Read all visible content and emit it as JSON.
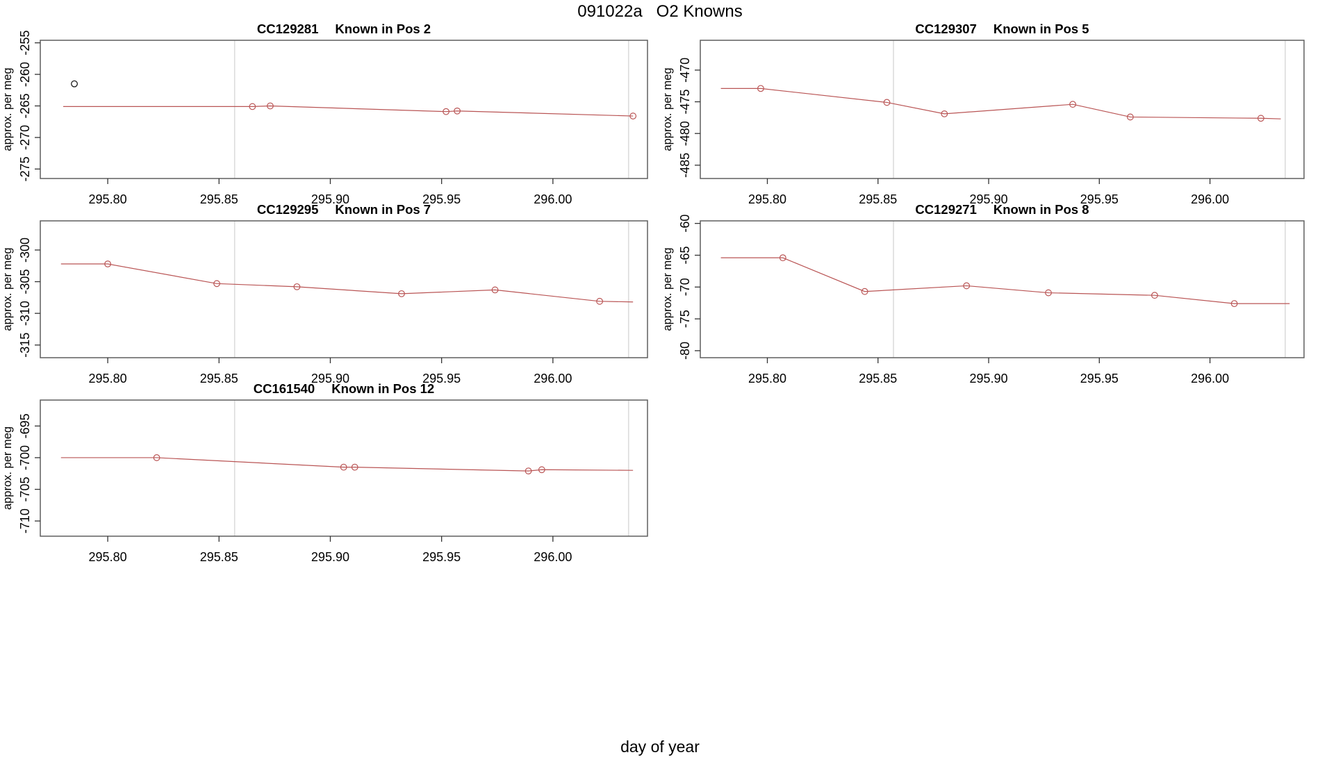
{
  "figure": {
    "title": "091022a   O2 Knowns",
    "outer_xlabel": "day of year"
  },
  "colors": {
    "series": "#b95454",
    "outlier_point": "#1a1a1a",
    "gridline": "#dcdcdc",
    "frame": "#5f5f5f",
    "tick": "#333333",
    "text": "#000000",
    "background": "#ffffff"
  },
  "chart_data": [
    {
      "type": "line",
      "sample_id": "CC129281",
      "position_label": "Known in Pos 2",
      "title": "CC129281   Known in Pos 2",
      "ylabel": "approx. per meg",
      "grid_col": 0,
      "grid_row": 0,
      "xlim": [
        295.7697,
        296.0425
      ],
      "ylim": [
        -276.5,
        -254.6
      ],
      "xticks": [
        295.8,
        295.85,
        295.9,
        295.95,
        296.0
      ],
      "yticks": [
        -255,
        -260,
        -265,
        -270,
        -275
      ],
      "vlines": [
        295.857,
        296.034
      ],
      "line": [
        [
          295.78,
          -265.1
        ],
        [
          295.865,
          -265.1
        ],
        [
          295.873,
          -265.0
        ],
        [
          295.952,
          -265.9
        ],
        [
          295.957,
          -265.8
        ],
        [
          296.036,
          -266.6
        ]
      ],
      "markers": [
        [
          295.865,
          -265.1
        ],
        [
          295.873,
          -265.0
        ],
        [
          295.952,
          -265.9
        ],
        [
          295.957,
          -265.8
        ],
        [
          296.036,
          -266.6
        ]
      ],
      "outlier_points": [
        [
          295.785,
          -261.5
        ]
      ]
    },
    {
      "type": "line",
      "sample_id": "CC129307",
      "position_label": "Known in Pos 5",
      "title": "CC129307   Known in Pos 5",
      "ylabel": "approx. per meg",
      "grid_col": 1,
      "grid_row": 0,
      "xlim": [
        295.7697,
        296.0425
      ],
      "ylim": [
        -487.1,
        -465.3
      ],
      "xticks": [
        295.8,
        295.85,
        295.9,
        295.95,
        296.0
      ],
      "yticks": [
        -470,
        -475,
        -480,
        -485
      ],
      "vlines": [
        295.857,
        296.034
      ],
      "line": [
        [
          295.779,
          -472.9
        ],
        [
          295.797,
          -472.9
        ],
        [
          295.854,
          -475.1
        ],
        [
          295.88,
          -476.9
        ],
        [
          295.938,
          -475.4
        ],
        [
          295.964,
          -477.4
        ],
        [
          296.023,
          -477.6
        ],
        [
          296.032,
          -477.7
        ]
      ],
      "markers": [
        [
          295.797,
          -472.9
        ],
        [
          295.854,
          -475.1
        ],
        [
          295.88,
          -476.9
        ],
        [
          295.938,
          -475.4
        ],
        [
          295.964,
          -477.4
        ],
        [
          296.023,
          -477.6
        ]
      ],
      "outlier_points": []
    },
    {
      "type": "line",
      "sample_id": "CC129295",
      "position_label": "Known in Pos 7",
      "title": "CC129295   Known in Pos 7",
      "ylabel": "approx. per meg",
      "grid_col": 0,
      "grid_row": 1,
      "xlim": [
        295.7697,
        296.0425
      ],
      "ylim": [
        -317.0,
        -295.4
      ],
      "xticks": [
        295.8,
        295.85,
        295.9,
        295.95,
        296.0
      ],
      "yticks": [
        -300,
        -305,
        -310,
        -315
      ],
      "vlines": [
        295.857,
        296.034
      ],
      "line": [
        [
          295.779,
          -302.2
        ],
        [
          295.8,
          -302.2
        ],
        [
          295.849,
          -305.3
        ],
        [
          295.885,
          -305.8
        ],
        [
          295.932,
          -306.9
        ],
        [
          295.974,
          -306.3
        ],
        [
          296.021,
          -308.1
        ],
        [
          296.036,
          -308.2
        ]
      ],
      "markers": [
        [
          295.8,
          -302.2
        ],
        [
          295.849,
          -305.3
        ],
        [
          295.885,
          -305.8
        ],
        [
          295.932,
          -306.9
        ],
        [
          295.974,
          -306.3
        ],
        [
          296.021,
          -308.1
        ]
      ],
      "outlier_points": []
    },
    {
      "type": "line",
      "sample_id": "CC129271",
      "position_label": "Known in Pos 8",
      "title": "CC129271   Known in Pos 8",
      "ylabel": "approx. per meg",
      "grid_col": 1,
      "grid_row": 1,
      "xlim": [
        295.7697,
        296.0425
      ],
      "ylim": [
        -81.1,
        -59.6
      ],
      "xticks": [
        295.8,
        295.85,
        295.9,
        295.95,
        296.0
      ],
      "yticks": [
        -60,
        -65,
        -70,
        -75,
        -80
      ],
      "vlines": [
        295.857,
        296.034
      ],
      "line": [
        [
          295.779,
          -65.4
        ],
        [
          295.807,
          -65.4
        ],
        [
          295.844,
          -70.7
        ],
        [
          295.89,
          -69.8
        ],
        [
          295.927,
          -70.9
        ],
        [
          295.975,
          -71.3
        ],
        [
          296.011,
          -72.6
        ],
        [
          296.036,
          -72.6
        ]
      ],
      "markers": [
        [
          295.807,
          -65.4
        ],
        [
          295.844,
          -70.7
        ],
        [
          295.89,
          -69.8
        ],
        [
          295.927,
          -70.9
        ],
        [
          295.975,
          -71.3
        ],
        [
          296.011,
          -72.6
        ]
      ],
      "outlier_points": []
    },
    {
      "type": "line",
      "sample_id": "CC161540",
      "position_label": "Known in Pos 12",
      "title": "CC161540   Known in Pos 12",
      "ylabel": "approx. per meg",
      "grid_col": 0,
      "grid_row": 2,
      "xlim": [
        295.7697,
        296.0425
      ],
      "ylim": [
        -712.4,
        -690.9
      ],
      "xticks": [
        295.8,
        295.85,
        295.9,
        295.95,
        296.0
      ],
      "yticks": [
        -695,
        -700,
        -705,
        -710
      ],
      "vlines": [
        295.857,
        296.034
      ],
      "line": [
        [
          295.779,
          -700.0
        ],
        [
          295.822,
          -700.0
        ],
        [
          295.906,
          -701.5
        ],
        [
          295.911,
          -701.5
        ],
        [
          295.989,
          -702.1
        ],
        [
          295.995,
          -701.9
        ],
        [
          296.036,
          -702.0
        ]
      ],
      "markers": [
        [
          295.822,
          -700.0
        ],
        [
          295.906,
          -701.5
        ],
        [
          295.911,
          -701.5
        ],
        [
          295.989,
          -702.1
        ],
        [
          295.995,
          -701.9
        ]
      ],
      "outlier_points": []
    }
  ]
}
